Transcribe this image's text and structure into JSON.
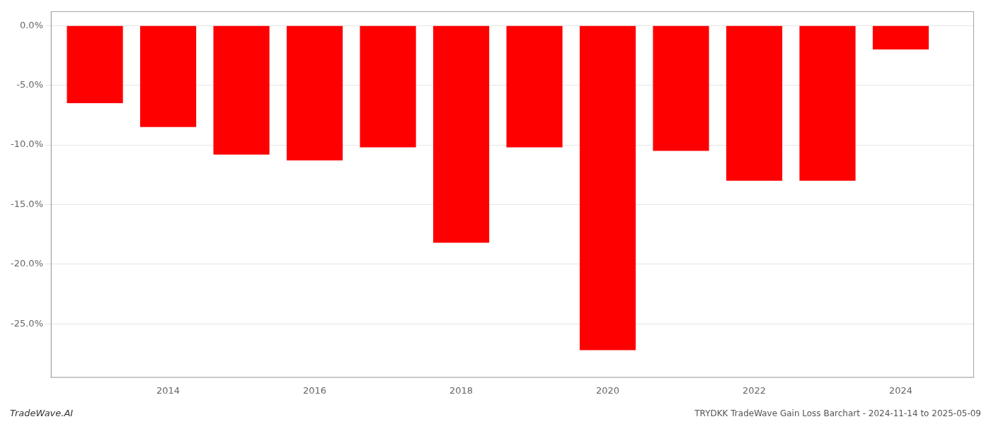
{
  "chart_data": {
    "type": "bar",
    "x": [
      2013,
      2014,
      2015,
      2016,
      2017,
      2018,
      2019,
      2020,
      2021,
      2022,
      2023,
      2024
    ],
    "values": [
      -6.5,
      -8.5,
      -10.8,
      -11.3,
      -10.2,
      -18.2,
      -10.2,
      -27.2,
      -10.5,
      -13.0,
      -13.0,
      -2.0
    ],
    "color": "#ff0000",
    "xlim": [
      2012.4,
      2025.0
    ],
    "xticks": [
      2014,
      2016,
      2018,
      2020,
      2022,
      2024
    ],
    "ylim": [
      -29.5,
      1.2
    ],
    "yticks": [
      {
        "value": 0.0,
        "label": "0.0%"
      },
      {
        "value": -5.0,
        "label": "-5.0%"
      },
      {
        "value": -10.0,
        "label": "-10.0%"
      },
      {
        "value": -15.0,
        "label": "-15.0%"
      },
      {
        "value": -20.0,
        "label": "-20.0%"
      },
      {
        "value": -25.0,
        "label": "-25.0%"
      }
    ],
    "grid": true,
    "annotations": [
      "TradeWave.AI",
      "TRYDKK TradeWave Gain Loss Barchart - 2024-11-14 to 2025-05-09"
    ]
  }
}
